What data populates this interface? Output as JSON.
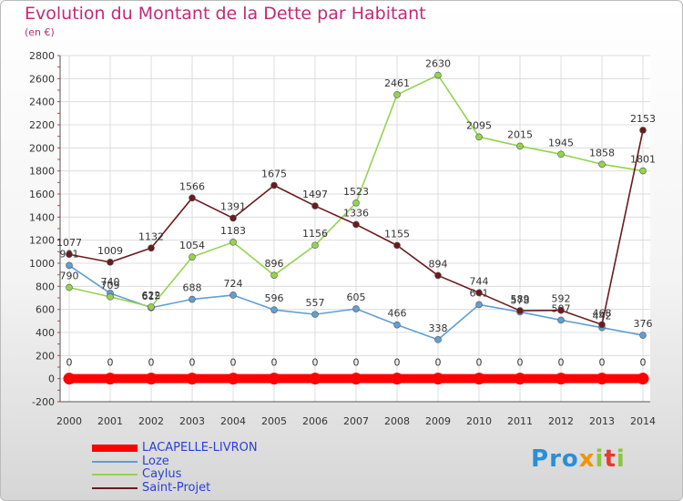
{
  "header": {
    "title": "Evolution du Montant de la Dette par Habitant",
    "subtitle": "(en €)"
  },
  "logo": {
    "text": "Proxiti"
  },
  "chart_data": {
    "type": "line",
    "title": "Evolution du Montant de la Dette par Habitant",
    "subtitle": "(en €)",
    "x": [
      2000,
      2001,
      2002,
      2003,
      2004,
      2005,
      2006,
      2007,
      2008,
      2009,
      2010,
      2011,
      2012,
      2013,
      2014
    ],
    "ylim": [
      -200,
      2800
    ],
    "yticks": [
      -200,
      0,
      200,
      400,
      600,
      800,
      1000,
      1200,
      1400,
      1600,
      1800,
      2000,
      2200,
      2400,
      2600,
      2800
    ],
    "grid": true,
    "legend_position": "bottom-left",
    "series": [
      {
        "name": "LACAPELLE-LIVRON",
        "color": "#ff0000",
        "thick": true,
        "values": [
          0,
          0,
          0,
          0,
          0,
          0,
          0,
          0,
          0,
          0,
          0,
          0,
          0,
          0,
          0
        ],
        "labels": [
          "0",
          "0",
          "0",
          "0",
          "0",
          "0",
          "0",
          "0",
          "0",
          "0",
          "0",
          "0",
          "0",
          "0",
          "0"
        ]
      },
      {
        "name": "Loze",
        "color": "#5f9fd3",
        "thick": false,
        "values": [
          981,
          740,
          615,
          688,
          724,
          596,
          557,
          605,
          466,
          338,
          641,
          578,
          507,
          442,
          376
        ],
        "labels": [
          "981",
          "740",
          "615",
          "688",
          "724",
          "596",
          "557",
          "605",
          "466",
          "338",
          "641",
          "578",
          "507",
          "442",
          "376"
        ]
      },
      {
        "name": "Caylus",
        "color": "#93d44e",
        "thick": false,
        "values": [
          790,
          709,
          622,
          1054,
          1183,
          896,
          1156,
          1523,
          2461,
          2630,
          2095,
          2015,
          1945,
          1858,
          1801
        ],
        "labels": [
          "790",
          "709",
          "622",
          "1054",
          "1183",
          "896",
          "1156",
          "1523",
          "2461",
          "2630",
          "2095",
          "2015",
          "1945",
          "1858",
          "1801"
        ]
      },
      {
        "name": "Saint-Projet",
        "color": "#6b1a1d",
        "thick": false,
        "values": [
          1077,
          1009,
          1132,
          1566,
          1391,
          1675,
          1497,
          1336,
          1155,
          894,
          744,
          589,
          592,
          468,
          2153
        ],
        "labels": [
          "1077",
          "1009",
          "1132",
          "1566",
          "1391",
          "1675",
          "1497",
          "1336",
          "1155",
          "894",
          "744",
          "589",
          "592",
          "468",
          "2153"
        ]
      }
    ]
  }
}
